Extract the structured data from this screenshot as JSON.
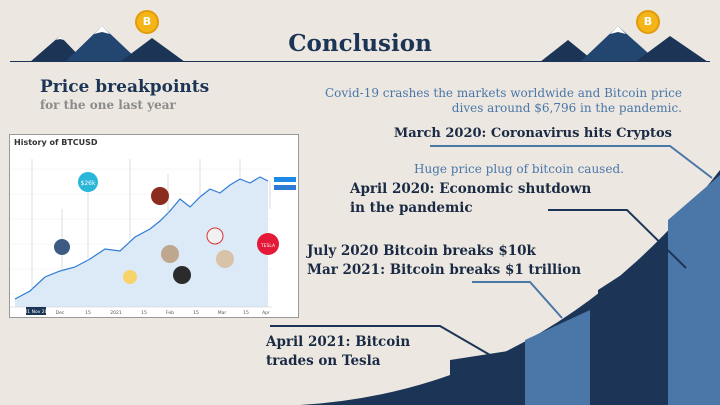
{
  "slide": {
    "title": "Conclusion",
    "heading": "Price breakpoints",
    "subheading": "for the one last year"
  },
  "notes": {
    "covid": "Covid-19 crashes the markets worldwide and Bitcoin price dives around $6,796 in the pandemic.",
    "plug": "Huge price plug of bitcoin caused."
  },
  "breakpoints": {
    "march_2020": "March 2020: Coronavirus hits Cryptos",
    "april_2020_line1": "April 2020: Economic shutdown",
    "april_2020_line2": "in the pandemic",
    "july_2020": "July 2020 Bitcoin breaks $10k",
    "mar_2021": "Mar 2021: Bitcoin breaks $1 trillion",
    "april_2021_line1": "April 2021: Bitcoin",
    "april_2021_line2": "trades on Tesla"
  },
  "chart": {
    "title": "History of BTCUSD",
    "annotations": [
      "$26k",
      "TESLA"
    ],
    "x_ticks": [
      "Dec",
      "15",
      "2021",
      "15",
      "Feb",
      "15",
      "Mar",
      "15",
      "Apr"
    ],
    "date_badge": "01 Nov 20"
  },
  "decor": {
    "coin_symbol": "B",
    "colors": {
      "navy": "#1C3556",
      "steel": "#4A76A8",
      "gold": "#F4B518",
      "background": "#ECE8E1"
    }
  }
}
